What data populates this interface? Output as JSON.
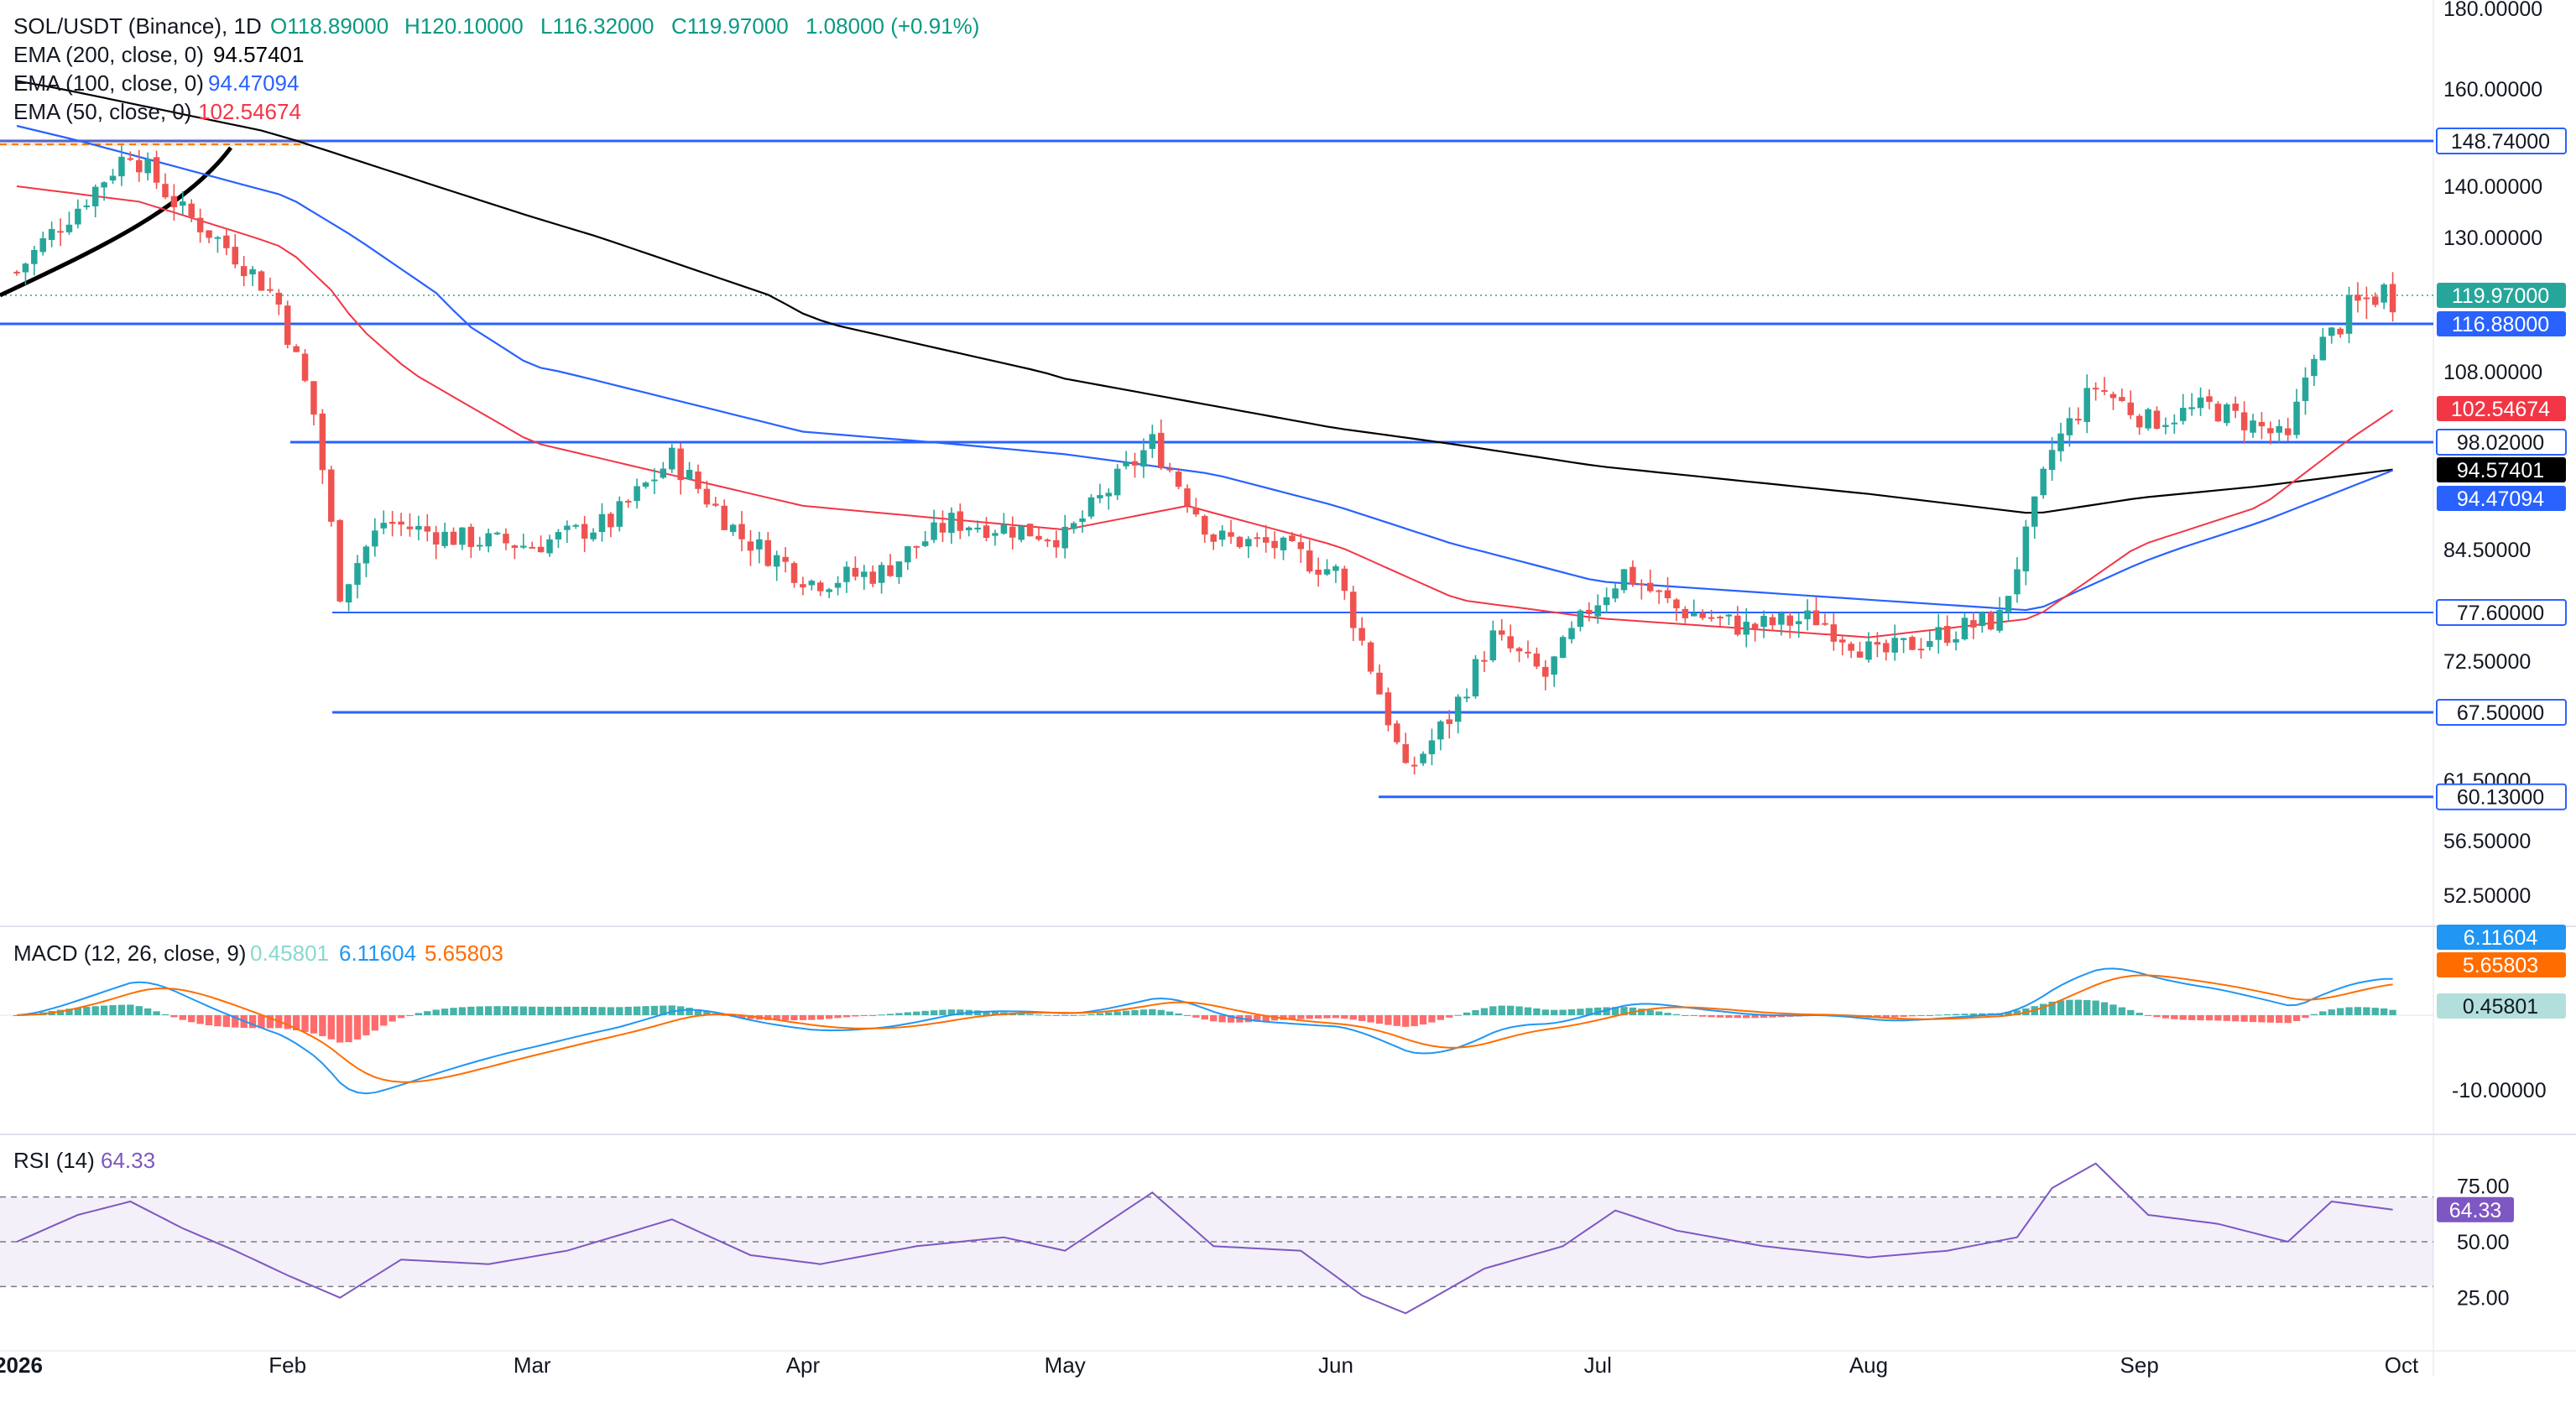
{
  "header": {
    "symbol": "SOL/USDT (Binance), 1D",
    "ohlc_o": "O118.89000",
    "ohlc_h": "H120.10000",
    "ohlc_l": "L116.32000",
    "ohlc_c": "C119.97000",
    "change": "1.08000 (+0.91%)"
  },
  "indicators": {
    "ema200_label": "EMA (200, close, 0)",
    "ema200_value": "94.57401",
    "ema100_label": "EMA (100, close, 0)",
    "ema100_value": "94.47094",
    "ema50_label": "EMA (50, close, 0)",
    "ema50_value": "102.54674",
    "macd_label": "MACD (12, 26, close, 9)",
    "macd_hist": "0.45801",
    "macd_line": "6.11604",
    "macd_signal": "5.65803",
    "rsi_label": "RSI (14)",
    "rsi_value": "64.33"
  },
  "colors": {
    "up": "#26a69a",
    "down": "#ef5350",
    "ema200": "#000000",
    "ema100": "#2962ff",
    "ema50": "#f23645",
    "level": "#2962ff",
    "macd": "#2196f3",
    "signal": "#ff6d00",
    "rsi": "#7e57c2"
  },
  "chart_data": {
    "type": "candlestick",
    "price_axis_ticks": [
      "180.00000",
      "160.00000",
      "140.00000",
      "130.00000",
      "108.00000",
      "84.50000",
      "72.50000",
      "61.50000",
      "56.50000",
      "52.50000"
    ],
    "levels": [
      {
        "value": 148.74,
        "label": "148.74000"
      },
      {
        "value": 116.88,
        "label": "116.88000"
      },
      {
        "value": 98.02,
        "label": "98.02000"
      },
      {
        "value": 77.6,
        "label": "77.60000"
      },
      {
        "value": 67.5,
        "label": "67.50000"
      },
      {
        "value": 60.13,
        "label": "60.13000"
      }
    ],
    "last_price": {
      "value": 119.97,
      "label": "119.97000"
    },
    "ema_badges": {
      "ema50": "102.54674",
      "ema200": "94.57401",
      "ema100": "94.47094"
    },
    "x_labels": [
      "2026",
      "Feb",
      "Mar",
      "Apr",
      "May",
      "Jun",
      "Jul",
      "Aug",
      "Sep",
      "Oct"
    ],
    "close_path": [
      [
        "2026-01-01",
        124
      ],
      [
        "2026-01-08",
        136
      ],
      [
        "2026-01-14",
        147
      ],
      [
        "2026-01-20",
        135
      ],
      [
        "2026-01-26",
        127
      ],
      [
        "2026-01-31",
        119
      ],
      [
        "2026-02-04",
        102
      ],
      [
        "2026-02-07",
        80
      ],
      [
        "2026-02-12",
        88
      ],
      [
        "2026-02-20",
        86
      ],
      [
        "2026-03-01",
        85
      ],
      [
        "2026-03-10",
        88
      ],
      [
        "2026-03-17",
        96
      ],
      [
        "2026-03-25",
        86
      ],
      [
        "2026-04-02",
        81
      ],
      [
        "2026-04-10",
        82
      ],
      [
        "2026-04-18",
        88
      ],
      [
        "2026-04-26",
        87
      ],
      [
        "2026-05-01",
        86
      ],
      [
        "2026-05-06",
        92
      ],
      [
        "2026-05-11",
        98
      ],
      [
        "2026-05-18",
        86
      ],
      [
        "2026-05-25",
        85
      ],
      [
        "2026-06-01",
        82
      ],
      [
        "2026-06-05",
        72
      ],
      [
        "2026-06-09",
        62
      ],
      [
        "2026-06-14",
        67
      ],
      [
        "2026-06-19",
        75
      ],
      [
        "2026-06-25",
        71
      ],
      [
        "2026-06-30",
        78
      ],
      [
        "2026-07-04",
        82
      ],
      [
        "2026-07-10",
        78
      ],
      [
        "2026-07-18",
        76
      ],
      [
        "2026-07-26",
        77
      ],
      [
        "2026-08-02",
        73
      ],
      [
        "2026-08-08",
        75
      ],
      [
        "2026-08-16",
        77
      ],
      [
        "2026-08-19",
        86
      ],
      [
        "2026-08-22",
        97
      ],
      [
        "2026-08-27",
        106
      ],
      [
        "2026-09-02",
        101
      ],
      [
        "2026-09-09",
        103
      ],
      [
        "2026-09-15",
        100
      ],
      [
        "2026-09-18",
        98
      ],
      [
        "2026-09-21",
        112
      ],
      [
        "2026-09-25",
        118
      ],
      [
        "2026-09-29",
        121
      ],
      [
        "2026-09-30",
        119.97
      ]
    ],
    "ema200_path": [
      [
        "2026-01-01",
        162
      ],
      [
        "2026-01-29",
        151
      ],
      [
        "2026-03-01",
        134
      ],
      [
        "2026-04-01",
        118
      ],
      [
        "2026-05-01",
        107
      ],
      [
        "2026-06-01",
        100
      ],
      [
        "2026-07-01",
        95
      ],
      [
        "2026-08-01",
        91.5
      ],
      [
        "2026-08-20",
        89
      ],
      [
        "2026-09-01",
        91
      ],
      [
        "2026-09-15",
        92.5
      ],
      [
        "2026-09-30",
        94.57
      ]
    ],
    "ema100_path": [
      [
        "2026-01-01",
        152
      ],
      [
        "2026-02-01",
        138
      ],
      [
        "2026-03-01",
        109
      ],
      [
        "2026-04-01",
        99.5
      ],
      [
        "2026-05-01",
        96.5
      ],
      [
        "2026-05-18",
        94
      ],
      [
        "2026-06-01",
        90
      ],
      [
        "2026-06-15",
        85
      ],
      [
        "2026-07-01",
        81
      ],
      [
        "2026-08-01",
        79
      ],
      [
        "2026-08-20",
        77.8
      ],
      [
        "2026-09-01",
        83
      ],
      [
        "2026-09-15",
        88
      ],
      [
        "2026-09-30",
        94.47
      ]
    ],
    "ema50_path": [
      [
        "2026-01-01",
        140
      ],
      [
        "2026-01-15",
        137
      ],
      [
        "2026-02-01",
        128
      ],
      [
        "2026-02-15",
        108
      ],
      [
        "2026-03-01",
        98
      ],
      [
        "2026-04-01",
        90
      ],
      [
        "2026-05-01",
        87
      ],
      [
        "2026-05-15",
        90
      ],
      [
        "2026-06-01",
        85
      ],
      [
        "2026-06-15",
        79
      ],
      [
        "2026-07-01",
        77
      ],
      [
        "2026-08-01",
        75
      ],
      [
        "2026-08-20",
        77
      ],
      [
        "2026-09-01",
        85
      ],
      [
        "2026-09-15",
        90
      ],
      [
        "2026-09-30",
        102.55
      ]
    ],
    "macd": {
      "axis_label": "-10.00000",
      "badges": {
        "macd": "6.11604",
        "signal": "5.65803",
        "hist": "0.45801"
      }
    },
    "rsi": {
      "ticks": [
        "75.00",
        "50.00",
        "25.00"
      ],
      "overbought": 70,
      "oversold": 30,
      "badge": "64.33",
      "path": [
        [
          "2026-01-01",
          50
        ],
        [
          "2026-01-08",
          62
        ],
        [
          "2026-01-14",
          68
        ],
        [
          "2026-01-20",
          56
        ],
        [
          "2026-01-26",
          46
        ],
        [
          "2026-02-01",
          35
        ],
        [
          "2026-02-07",
          25
        ],
        [
          "2026-02-14",
          42
        ],
        [
          "2026-02-24",
          40
        ],
        [
          "2026-03-05",
          46
        ],
        [
          "2026-03-17",
          60
        ],
        [
          "2026-03-26",
          44
        ],
        [
          "2026-04-03",
          40
        ],
        [
          "2026-04-14",
          48
        ],
        [
          "2026-04-24",
          52
        ],
        [
          "2026-05-01",
          46
        ],
        [
          "2026-05-11",
          72
        ],
        [
          "2026-05-18",
          48
        ],
        [
          "2026-05-28",
          46
        ],
        [
          "2026-06-04",
          26
        ],
        [
          "2026-06-09",
          18
        ],
        [
          "2026-06-18",
          38
        ],
        [
          "2026-06-27",
          48
        ],
        [
          "2026-07-03",
          64
        ],
        [
          "2026-07-10",
          55
        ],
        [
          "2026-07-20",
          48
        ],
        [
          "2026-08-01",
          43
        ],
        [
          "2026-08-10",
          46
        ],
        [
          "2026-08-18",
          52
        ],
        [
          "2026-08-22",
          74
        ],
        [
          "2026-08-27",
          85
        ],
        [
          "2026-09-02",
          62
        ],
        [
          "2026-09-10",
          58
        ],
        [
          "2026-09-18",
          50
        ],
        [
          "2026-09-23",
          68
        ],
        [
          "2026-09-30",
          64.33
        ]
      ]
    }
  }
}
